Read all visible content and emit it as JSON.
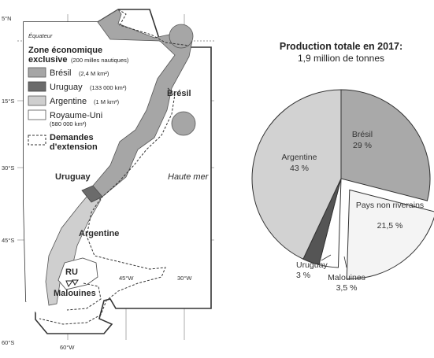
{
  "map": {
    "lat_labels": [
      "5°N",
      "15°S",
      "30°S",
      "45°S",
      "60°S"
    ],
    "lon_labels": [
      "60°W",
      "45°W",
      "30°W"
    ],
    "equator_label": "Équateur",
    "labels": {
      "bresil": "Brésil",
      "uruguay": "Uruguay",
      "argentine": "Argentine",
      "ru": "RU",
      "malouines": "Malouines",
      "haute_mer": "Haute mer"
    },
    "legend": {
      "title_line1": "Zone économique",
      "title_line2": "exclusive",
      "title_note": "(200 milles nautiques)",
      "items": [
        {
          "name": "Brésil",
          "area": "(2,4 M km²)",
          "color": "#a6a6a6"
        },
        {
          "name": "Uruguay",
          "area": "(133 000 km²)",
          "color": "#6b6b6b"
        },
        {
          "name": "Argentine",
          "area": "(1 M km²)",
          "color": "#cfcfcf"
        },
        {
          "name": "Royaume-Uni",
          "area": "(580 000 km²)",
          "color": "#ffffff"
        }
      ],
      "extension_line1": "Demandes",
      "extension_line2": "d'extension"
    }
  },
  "chart_data": {
    "type": "pie",
    "title": "Production totale en 2017:",
    "subtitle": "1,9 million de tonnes",
    "unit": "%",
    "slices": [
      {
        "name": "Brésil",
        "value_label": "29 %",
        "value": 29,
        "color": "#a9a9a9",
        "exploded": false
      },
      {
        "name": "Pays non riverains",
        "value_label": "21,5 %",
        "value": 21.5,
        "color": "#f4f4f4",
        "exploded": true
      },
      {
        "name": "Malouines",
        "value_label": "3,5 %",
        "value": 3.5,
        "color": "#ffffff",
        "exploded": false
      },
      {
        "name": "Uruguay",
        "value_label": "3 %",
        "value": 3,
        "color": "#555555",
        "exploded": false
      },
      {
        "name": "Argentine",
        "value_label": "43 %",
        "value": 43,
        "color": "#d2d2d2",
        "exploded": false
      }
    ]
  }
}
